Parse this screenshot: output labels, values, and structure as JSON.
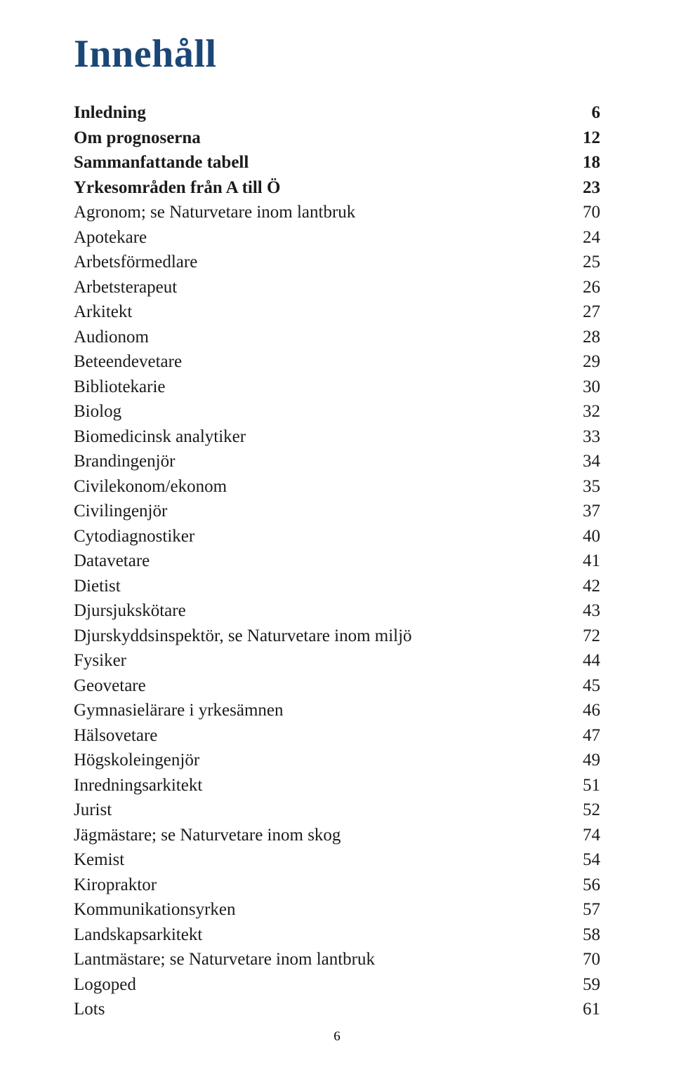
{
  "title": "Innehåll",
  "title_color": "#1b4776",
  "text_color": "#1b1b1b",
  "background_color": "#ffffff",
  "title_fontsize": 56,
  "row_fontsize": 25,
  "page_number": "6",
  "entries": [
    {
      "label": "Inledning",
      "page": "6",
      "bold": true
    },
    {
      "label": "Om prognoserna",
      "page": "12",
      "bold": true
    },
    {
      "label": "Sammanfattande tabell",
      "page": "18",
      "bold": true
    },
    {
      "label": "Yrkesområden från A till Ö",
      "page": "23",
      "bold": true
    },
    {
      "label": "Agronom; se Naturvetare inom lantbruk",
      "page": "70",
      "bold": false
    },
    {
      "label": "Apotekare",
      "page": "24",
      "bold": false
    },
    {
      "label": "Arbetsförmedlare",
      "page": "25",
      "bold": false
    },
    {
      "label": "Arbetsterapeut",
      "page": "26",
      "bold": false
    },
    {
      "label": "Arkitekt",
      "page": "27",
      "bold": false
    },
    {
      "label": "Audionom",
      "page": "28",
      "bold": false
    },
    {
      "label": "Beteendevetare",
      "page": "29",
      "bold": false
    },
    {
      "label": "Bibliotekarie",
      "page": "30",
      "bold": false
    },
    {
      "label": "Biolog",
      "page": "32",
      "bold": false
    },
    {
      "label": "Biomedicinsk analytiker",
      "page": "33",
      "bold": false
    },
    {
      "label": "Brandingenjör",
      "page": "34",
      "bold": false
    },
    {
      "label": "Civilekonom/ekonom",
      "page": "35",
      "bold": false
    },
    {
      "label": "Civilingenjör",
      "page": "37",
      "bold": false
    },
    {
      "label": "Cytodiagnostiker",
      "page": "40",
      "bold": false
    },
    {
      "label": "Datavetare",
      "page": "41",
      "bold": false
    },
    {
      "label": "Dietist",
      "page": "42",
      "bold": false
    },
    {
      "label": "Djursjukskötare",
      "page": "43",
      "bold": false
    },
    {
      "label": "Djurskyddsinspektör, se Naturvetare inom miljö",
      "page": "72",
      "bold": false
    },
    {
      "label": "Fysiker",
      "page": "44",
      "bold": false
    },
    {
      "label": "Geovetare",
      "page": "45",
      "bold": false
    },
    {
      "label": "Gymnasielärare i yrkesämnen",
      "page": "46",
      "bold": false
    },
    {
      "label": "Hälsovetare",
      "page": "47",
      "bold": false
    },
    {
      "label": "Högskoleingenjör",
      "page": "49",
      "bold": false
    },
    {
      "label": "Inredningsarkitekt",
      "page": "51",
      "bold": false
    },
    {
      "label": "Jurist",
      "page": "52",
      "bold": false
    },
    {
      "label": "Jägmästare; se Naturvetare inom skog",
      "page": "74",
      "bold": false
    },
    {
      "label": "Kemist",
      "page": "54",
      "bold": false
    },
    {
      "label": "Kiropraktor",
      "page": "56",
      "bold": false
    },
    {
      "label": "Kommunikationsyrken",
      "page": "57",
      "bold": false
    },
    {
      "label": "Landskapsarkitekt",
      "page": "58",
      "bold": false
    },
    {
      "label": "Lantmästare; se Naturvetare inom lantbruk",
      "page": "70",
      "bold": false
    },
    {
      "label": "Logoped",
      "page": "59",
      "bold": false
    },
    {
      "label": "Lots",
      "page": "61",
      "bold": false
    }
  ]
}
